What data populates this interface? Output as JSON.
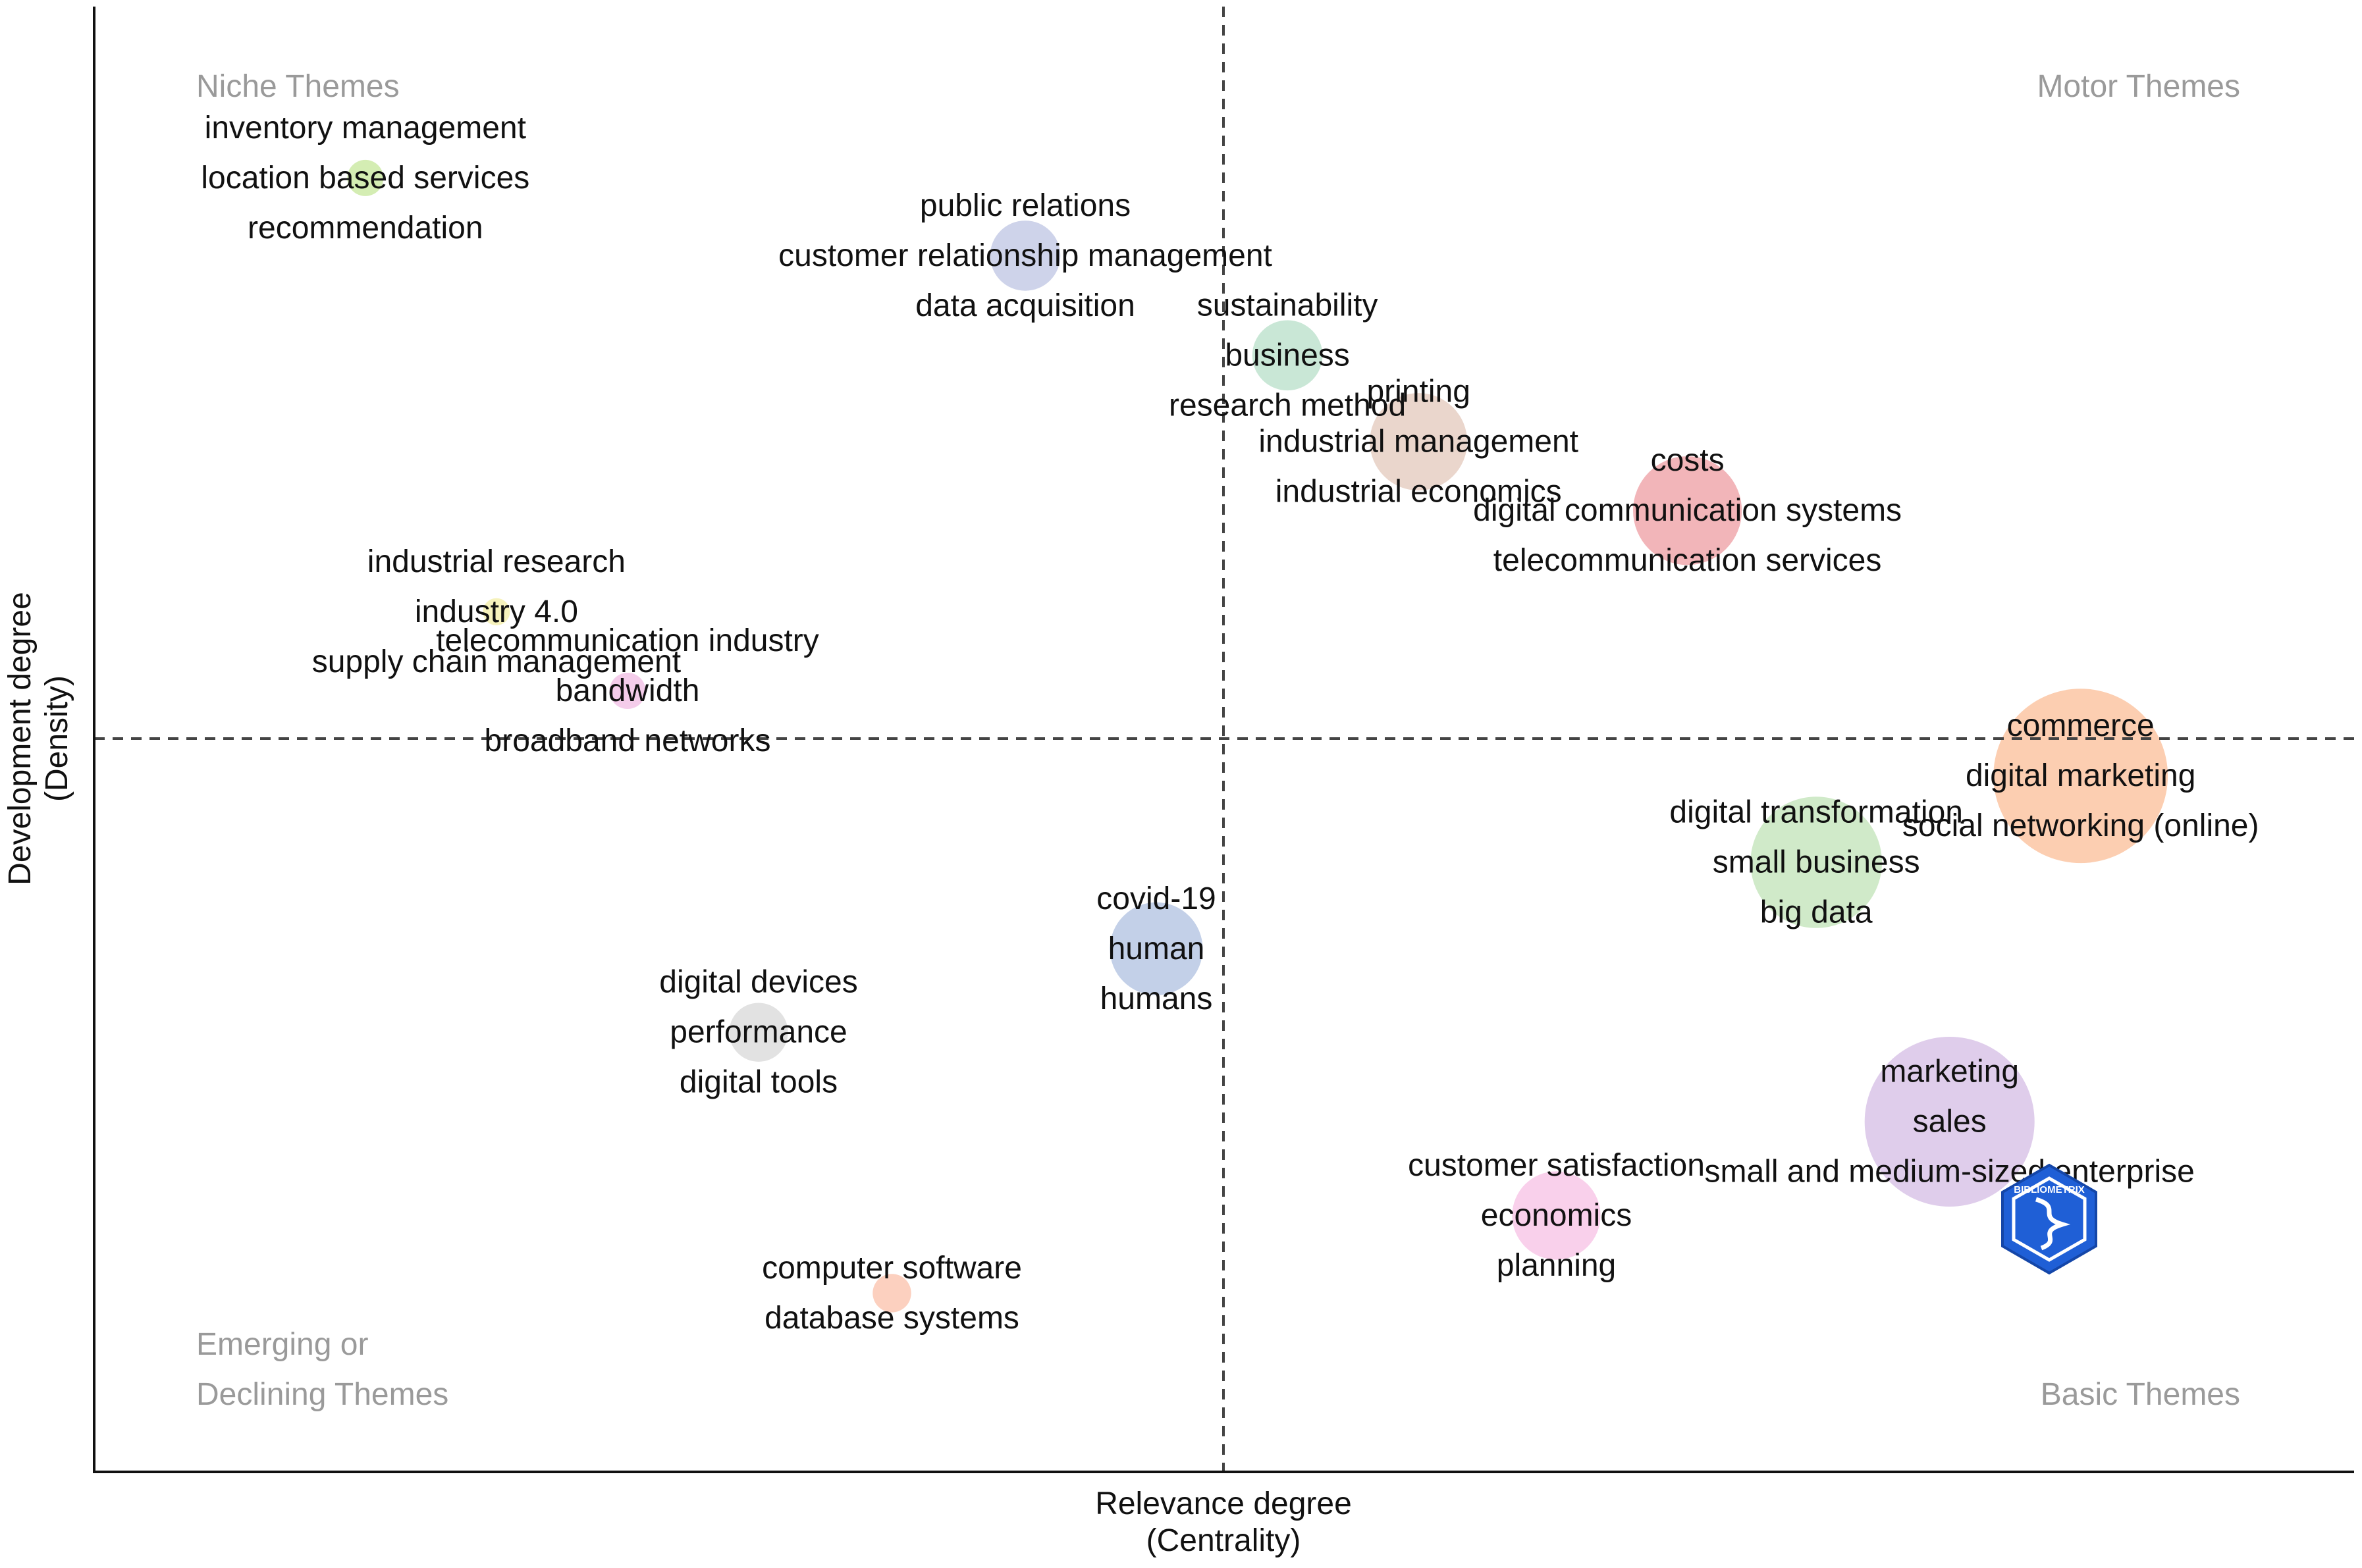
{
  "chart_data": {
    "type": "scatter",
    "title": "",
    "xlabel": "Relevance degree",
    "xlabel_sub": "(Centrality)",
    "ylabel": "Development degree",
    "ylabel_sub": "(Density)",
    "xlim": [
      0,
      100
    ],
    "ylim": [
      0,
      100
    ],
    "x_divider": 50,
    "y_divider": 50,
    "quadrant_labels": {
      "top_left": "Niche Themes",
      "top_right": "Motor Themes",
      "bottom_left_line1": "Emerging or",
      "bottom_left_line2": "Declining Themes",
      "bottom_right": "Basic Themes"
    },
    "clusters": [
      {
        "x": 12.0,
        "y": 88.3,
        "size": 1.6,
        "color": "#cdeaa6",
        "keywords": [
          "inventory management",
          "location based services",
          "recommendation"
        ]
      },
      {
        "x": 41.2,
        "y": 83.0,
        "size": 3.1,
        "color": "#c5cbe6",
        "keywords": [
          "public relations",
          "customer relationship management",
          "data acquisition"
        ]
      },
      {
        "x": 52.8,
        "y": 76.2,
        "size": 3.1,
        "color": "#bfe3cf",
        "keywords": [
          "sustainability",
          "business",
          "research method"
        ]
      },
      {
        "x": 58.6,
        "y": 70.3,
        "size": 4.3,
        "color": "#e6cfc3",
        "keywords": [
          "printing",
          "industrial management",
          "industrial economics"
        ]
      },
      {
        "x": 70.5,
        "y": 65.6,
        "size": 4.8,
        "color": "#f0a8ad",
        "keywords": [
          "costs",
          "digital communication systems",
          "telecommunication services"
        ]
      },
      {
        "x": 17.8,
        "y": 58.7,
        "size": 1.2,
        "color": "#f5f0b0",
        "keywords": [
          "industrial research",
          "industry 4.0",
          "supply chain management"
        ]
      },
      {
        "x": 23.6,
        "y": 53.3,
        "size": 1.6,
        "color": "#f2c3e6",
        "keywords": [
          "telecommunication industry",
          "bandwidth",
          "broadband networks"
        ]
      },
      {
        "x": 87.9,
        "y": 47.5,
        "size": 7.7,
        "color": "#fbc6a3",
        "keywords": [
          "commerce",
          "digital marketing",
          "social networking (online)"
        ]
      },
      {
        "x": 76.2,
        "y": 41.6,
        "size": 5.8,
        "color": "#c8e6c0",
        "keywords": [
          "digital transformation",
          "small business",
          "big data"
        ]
      },
      {
        "x": 47.0,
        "y": 35.7,
        "size": 4.1,
        "color": "#b8c8e4",
        "keywords": [
          "covid-19",
          "human",
          "humans"
        ]
      },
      {
        "x": 29.4,
        "y": 30.0,
        "size": 2.6,
        "color": "#dddddd",
        "keywords": [
          "digital devices",
          "performance",
          "digital tools"
        ]
      },
      {
        "x": 82.1,
        "y": 23.9,
        "size": 7.5,
        "color": "#d9c4e8",
        "keywords": [
          "marketing",
          "sales",
          "small and medium-sized enterprise"
        ]
      },
      {
        "x": 64.7,
        "y": 17.5,
        "size": 3.9,
        "color": "#f8c8e8",
        "keywords": [
          "customer satisfaction",
          "economics",
          "planning"
        ]
      },
      {
        "x": 35.3,
        "y": 12.2,
        "size": 1.7,
        "color": "#fbc8b4",
        "keywords": [
          "computer software",
          "database systems"
        ]
      }
    ],
    "watermark": "BIBLIOMETRIX"
  }
}
